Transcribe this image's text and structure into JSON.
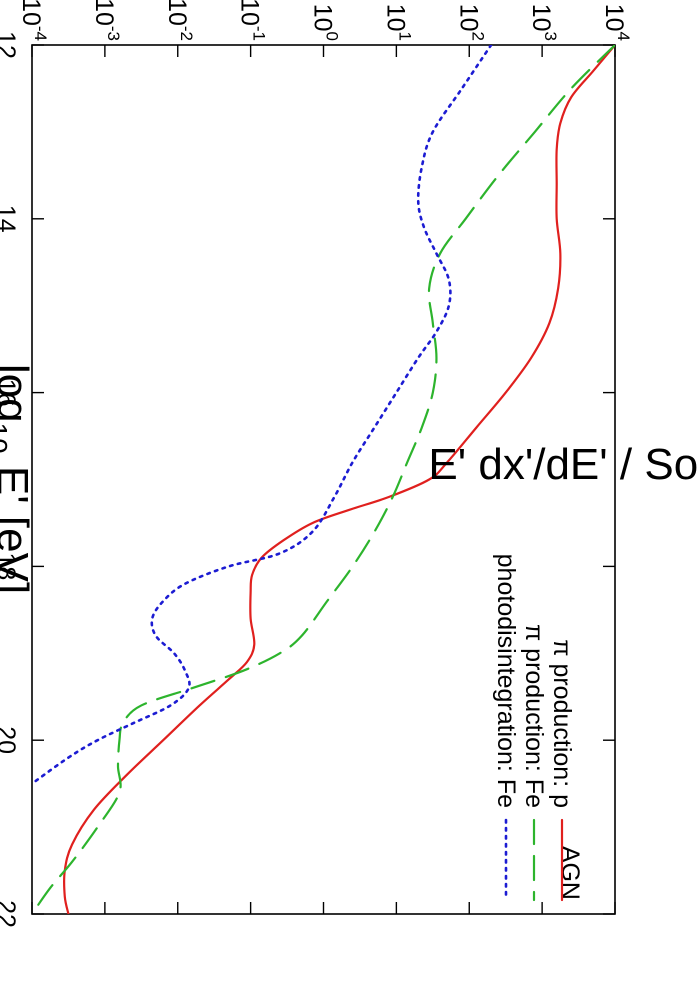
{
  "chart_data": {
    "type": "line",
    "xlabel_main": "log",
    "xlabel_sub": "10",
    "xlabel_rest": " E' [eV]",
    "ylabel": "E' dx'/dE' / Source Size",
    "xlim": [
      12,
      22
    ],
    "ylim_log10": [
      -4,
      4
    ],
    "y_log_scale": true,
    "grid": false,
    "legend_position": "top-right",
    "x_ticks": [
      {
        "value": 12,
        "label": "12"
      },
      {
        "value": 14,
        "label": "14"
      },
      {
        "value": 16,
        "label": "16"
      },
      {
        "value": 18,
        "label": "18"
      },
      {
        "value": 20,
        "label": "20"
      },
      {
        "value": 22,
        "label": "22"
      }
    ],
    "y_ticks": [
      {
        "value": 4,
        "base": "10",
        "exp": "4"
      },
      {
        "value": 3,
        "base": "10",
        "exp": "3"
      },
      {
        "value": 2,
        "base": "10",
        "exp": "2"
      },
      {
        "value": 1,
        "base": "10",
        "exp": "1"
      },
      {
        "value": 0,
        "base": "10",
        "exp": "0"
      },
      {
        "value": -1,
        "base": "10",
        "exp": "-1"
      },
      {
        "value": -2,
        "base": "10",
        "exp": "-2"
      },
      {
        "value": -3,
        "base": "10",
        "exp": "-3"
      },
      {
        "value": -4,
        "base": "10",
        "exp": "-4"
      }
    ],
    "legend_title": "AGN",
    "series": [
      {
        "name": "π production: p",
        "color": "#e0201e",
        "dash": "solid",
        "x": [
          12.0,
          12.3,
          12.6,
          12.9,
          13.2,
          13.6,
          14.0,
          14.4,
          14.8,
          15.2,
          15.6,
          16.0,
          16.4,
          16.8,
          17.0,
          17.2,
          17.35,
          17.5,
          17.7,
          17.9,
          18.1,
          18.3,
          18.6,
          18.9,
          19.1,
          19.3,
          19.6,
          20.0,
          20.4,
          20.8,
          21.2,
          21.5,
          21.8,
          22.0
        ],
        "y_log10": [
          4.0,
          3.7,
          3.4,
          3.25,
          3.2,
          3.2,
          3.2,
          3.25,
          3.22,
          3.1,
          2.85,
          2.5,
          2.1,
          1.7,
          1.45,
          0.9,
          0.35,
          -0.15,
          -0.55,
          -0.85,
          -0.98,
          -1.0,
          -1.0,
          -0.95,
          -1.05,
          -1.3,
          -1.7,
          -2.2,
          -2.7,
          -3.15,
          -3.45,
          -3.55,
          -3.55,
          -3.5
        ]
      },
      {
        "name": "π production: Fe",
        "color": "#2db42d",
        "dash": "long",
        "x": [
          12.0,
          12.5,
          13.0,
          13.5,
          14.0,
          14.4,
          14.8,
          15.2,
          15.6,
          16.0,
          16.4,
          16.8,
          17.2,
          17.6,
          18.0,
          18.4,
          18.8,
          19.0,
          19.2,
          19.4,
          19.6,
          19.8,
          20.0,
          20.3,
          20.6,
          21.0,
          21.4,
          21.7,
          22.0
        ],
        "y_log10": [
          4.0,
          3.4,
          2.9,
          2.4,
          1.95,
          1.6,
          1.45,
          1.5,
          1.55,
          1.5,
          1.35,
          1.15,
          0.95,
          0.7,
          0.4,
          0.05,
          -0.3,
          -0.6,
          -1.1,
          -1.8,
          -2.5,
          -2.75,
          -2.8,
          -2.82,
          -2.8,
          -3.1,
          -3.45,
          -3.75,
          -4.0
        ]
      },
      {
        "name": "photodisintegration: Fe",
        "color": "#1c1cd2",
        "dash": "dotted",
        "x": [
          12.0,
          12.5,
          13.0,
          13.4,
          13.8,
          14.1,
          14.4,
          14.7,
          15.0,
          15.3,
          15.6,
          16.0,
          16.4,
          16.8,
          17.2,
          17.6,
          17.85,
          18.0,
          18.2,
          18.4,
          18.6,
          18.8,
          19.0,
          19.2,
          19.4,
          19.6,
          19.8,
          20.0,
          20.2,
          20.5
        ],
        "y_log10": [
          2.3,
          1.9,
          1.5,
          1.35,
          1.3,
          1.38,
          1.55,
          1.72,
          1.72,
          1.55,
          1.3,
          1.0,
          0.7,
          0.4,
          0.15,
          -0.15,
          -0.6,
          -1.3,
          -1.9,
          -2.2,
          -2.35,
          -2.3,
          -2.05,
          -1.9,
          -1.85,
          -2.1,
          -2.6,
          -3.1,
          -3.5,
          -4.0
        ]
      }
    ]
  }
}
